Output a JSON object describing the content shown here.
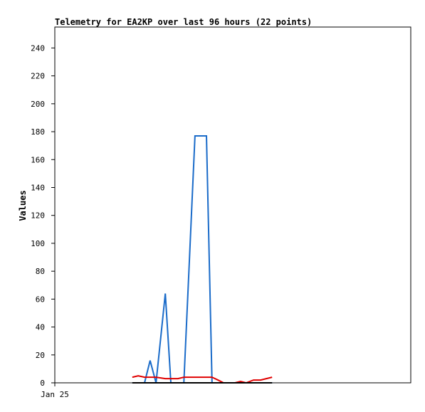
{
  "chart_data": {
    "type": "line",
    "title": "Telemetry for EA2KP over last 96 hours (22 points)",
    "y_label": "Values",
    "x": [
      20.9,
      22.5,
      24.2,
      25.7,
      27.3,
      29.8,
      31.3,
      33.2,
      34.8,
      36.3,
      37.8,
      39.4,
      40.9,
      42.4,
      44.0,
      45.5,
      48.6,
      50.1,
      51.6,
      53.6,
      55.5,
      58.6
    ],
    "series": [
      {
        "color": "#1a6bc9",
        "values": [
          0,
          0,
          0,
          16,
          0,
          64,
          0,
          0,
          0,
          88,
          177,
          177,
          177,
          0,
          0,
          0,
          0,
          0,
          0,
          0,
          0,
          0
        ]
      },
      {
        "color": "#e00000",
        "values": [
          4,
          5,
          4,
          4,
          4,
          3,
          3,
          3,
          4,
          4,
          4,
          4,
          4,
          4,
          2,
          0,
          0,
          1,
          0,
          2,
          2,
          4
        ]
      },
      {
        "color": "#000000",
        "values": [
          0,
          0,
          0,
          0,
          0,
          0,
          0,
          0,
          0,
          0,
          0,
          0,
          0,
          0,
          0,
          0,
          0,
          0,
          0,
          0,
          0,
          0
        ]
      }
    ],
    "xlim": [
      0,
      96
    ],
    "xticks": [
      {
        "value": 0,
        "label": "Jan 25"
      }
    ],
    "ylim": [
      0,
      255
    ],
    "yticks": [
      0,
      20,
      40,
      60,
      80,
      100,
      120,
      140,
      160,
      180,
      200,
      220,
      240
    ]
  }
}
